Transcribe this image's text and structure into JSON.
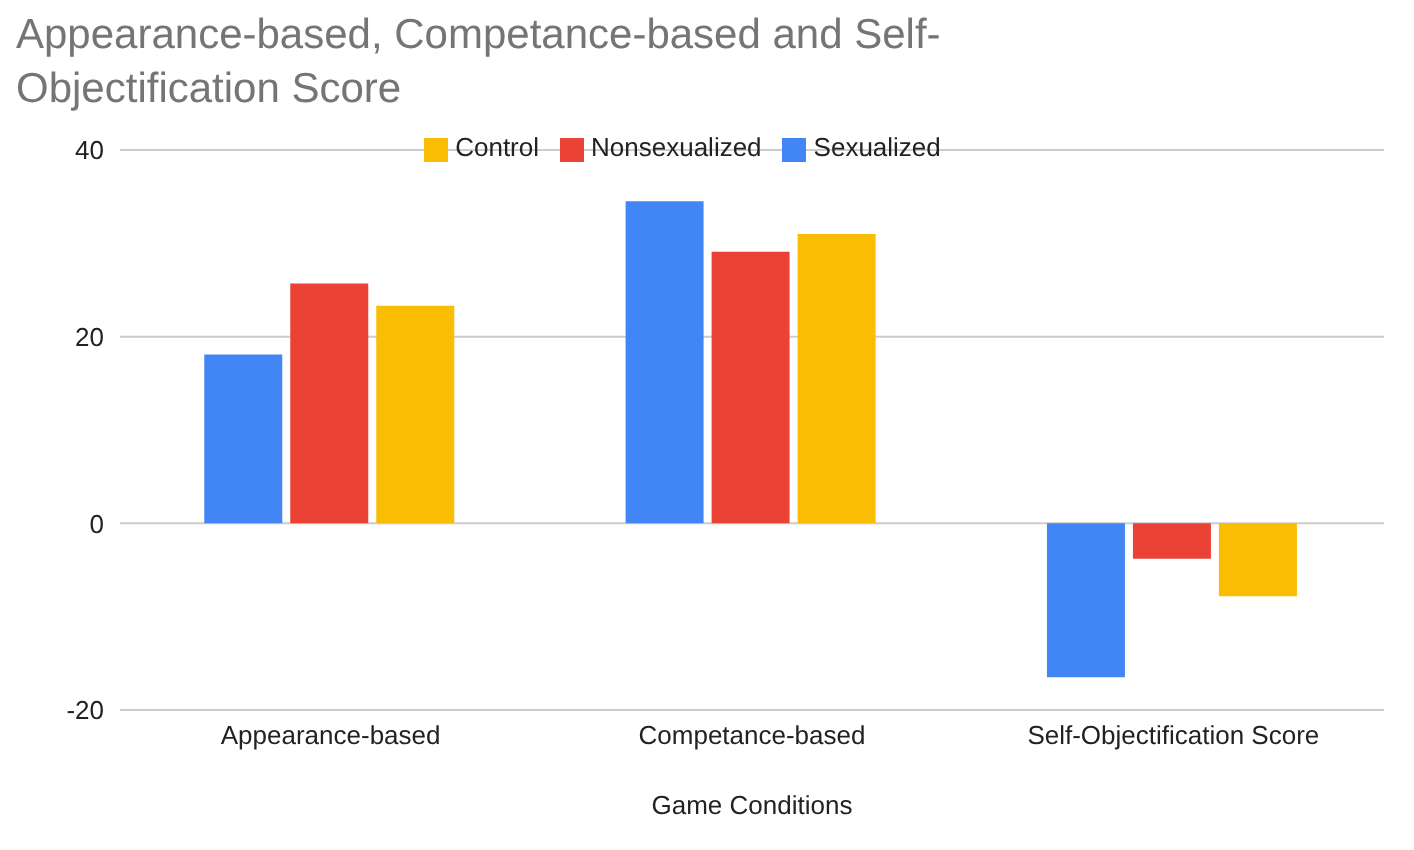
{
  "chart_data": {
    "type": "bar",
    "title": "Appearance-based, Competance-based and Self-Objectification Score",
    "xlabel": "Game Conditions",
    "categories": [
      "Appearance-based",
      "Competance-based",
      "Self-Objectification Score"
    ],
    "series": [
      {
        "name": "Sexualized",
        "color": "#4285f4",
        "values": [
          18.1,
          34.5,
          -16.5
        ]
      },
      {
        "name": "Nonsexualized",
        "color": "#ea4335",
        "values": [
          25.7,
          29.1,
          -3.8
        ]
      },
      {
        "name": "Control",
        "color": "#fbbc04",
        "values": [
          23.3,
          31.0,
          -7.8
        ]
      }
    ],
    "ylim": [
      -20,
      40
    ],
    "yticks": [
      -20,
      0,
      20,
      40
    ],
    "grid": "y",
    "legend": "top"
  }
}
